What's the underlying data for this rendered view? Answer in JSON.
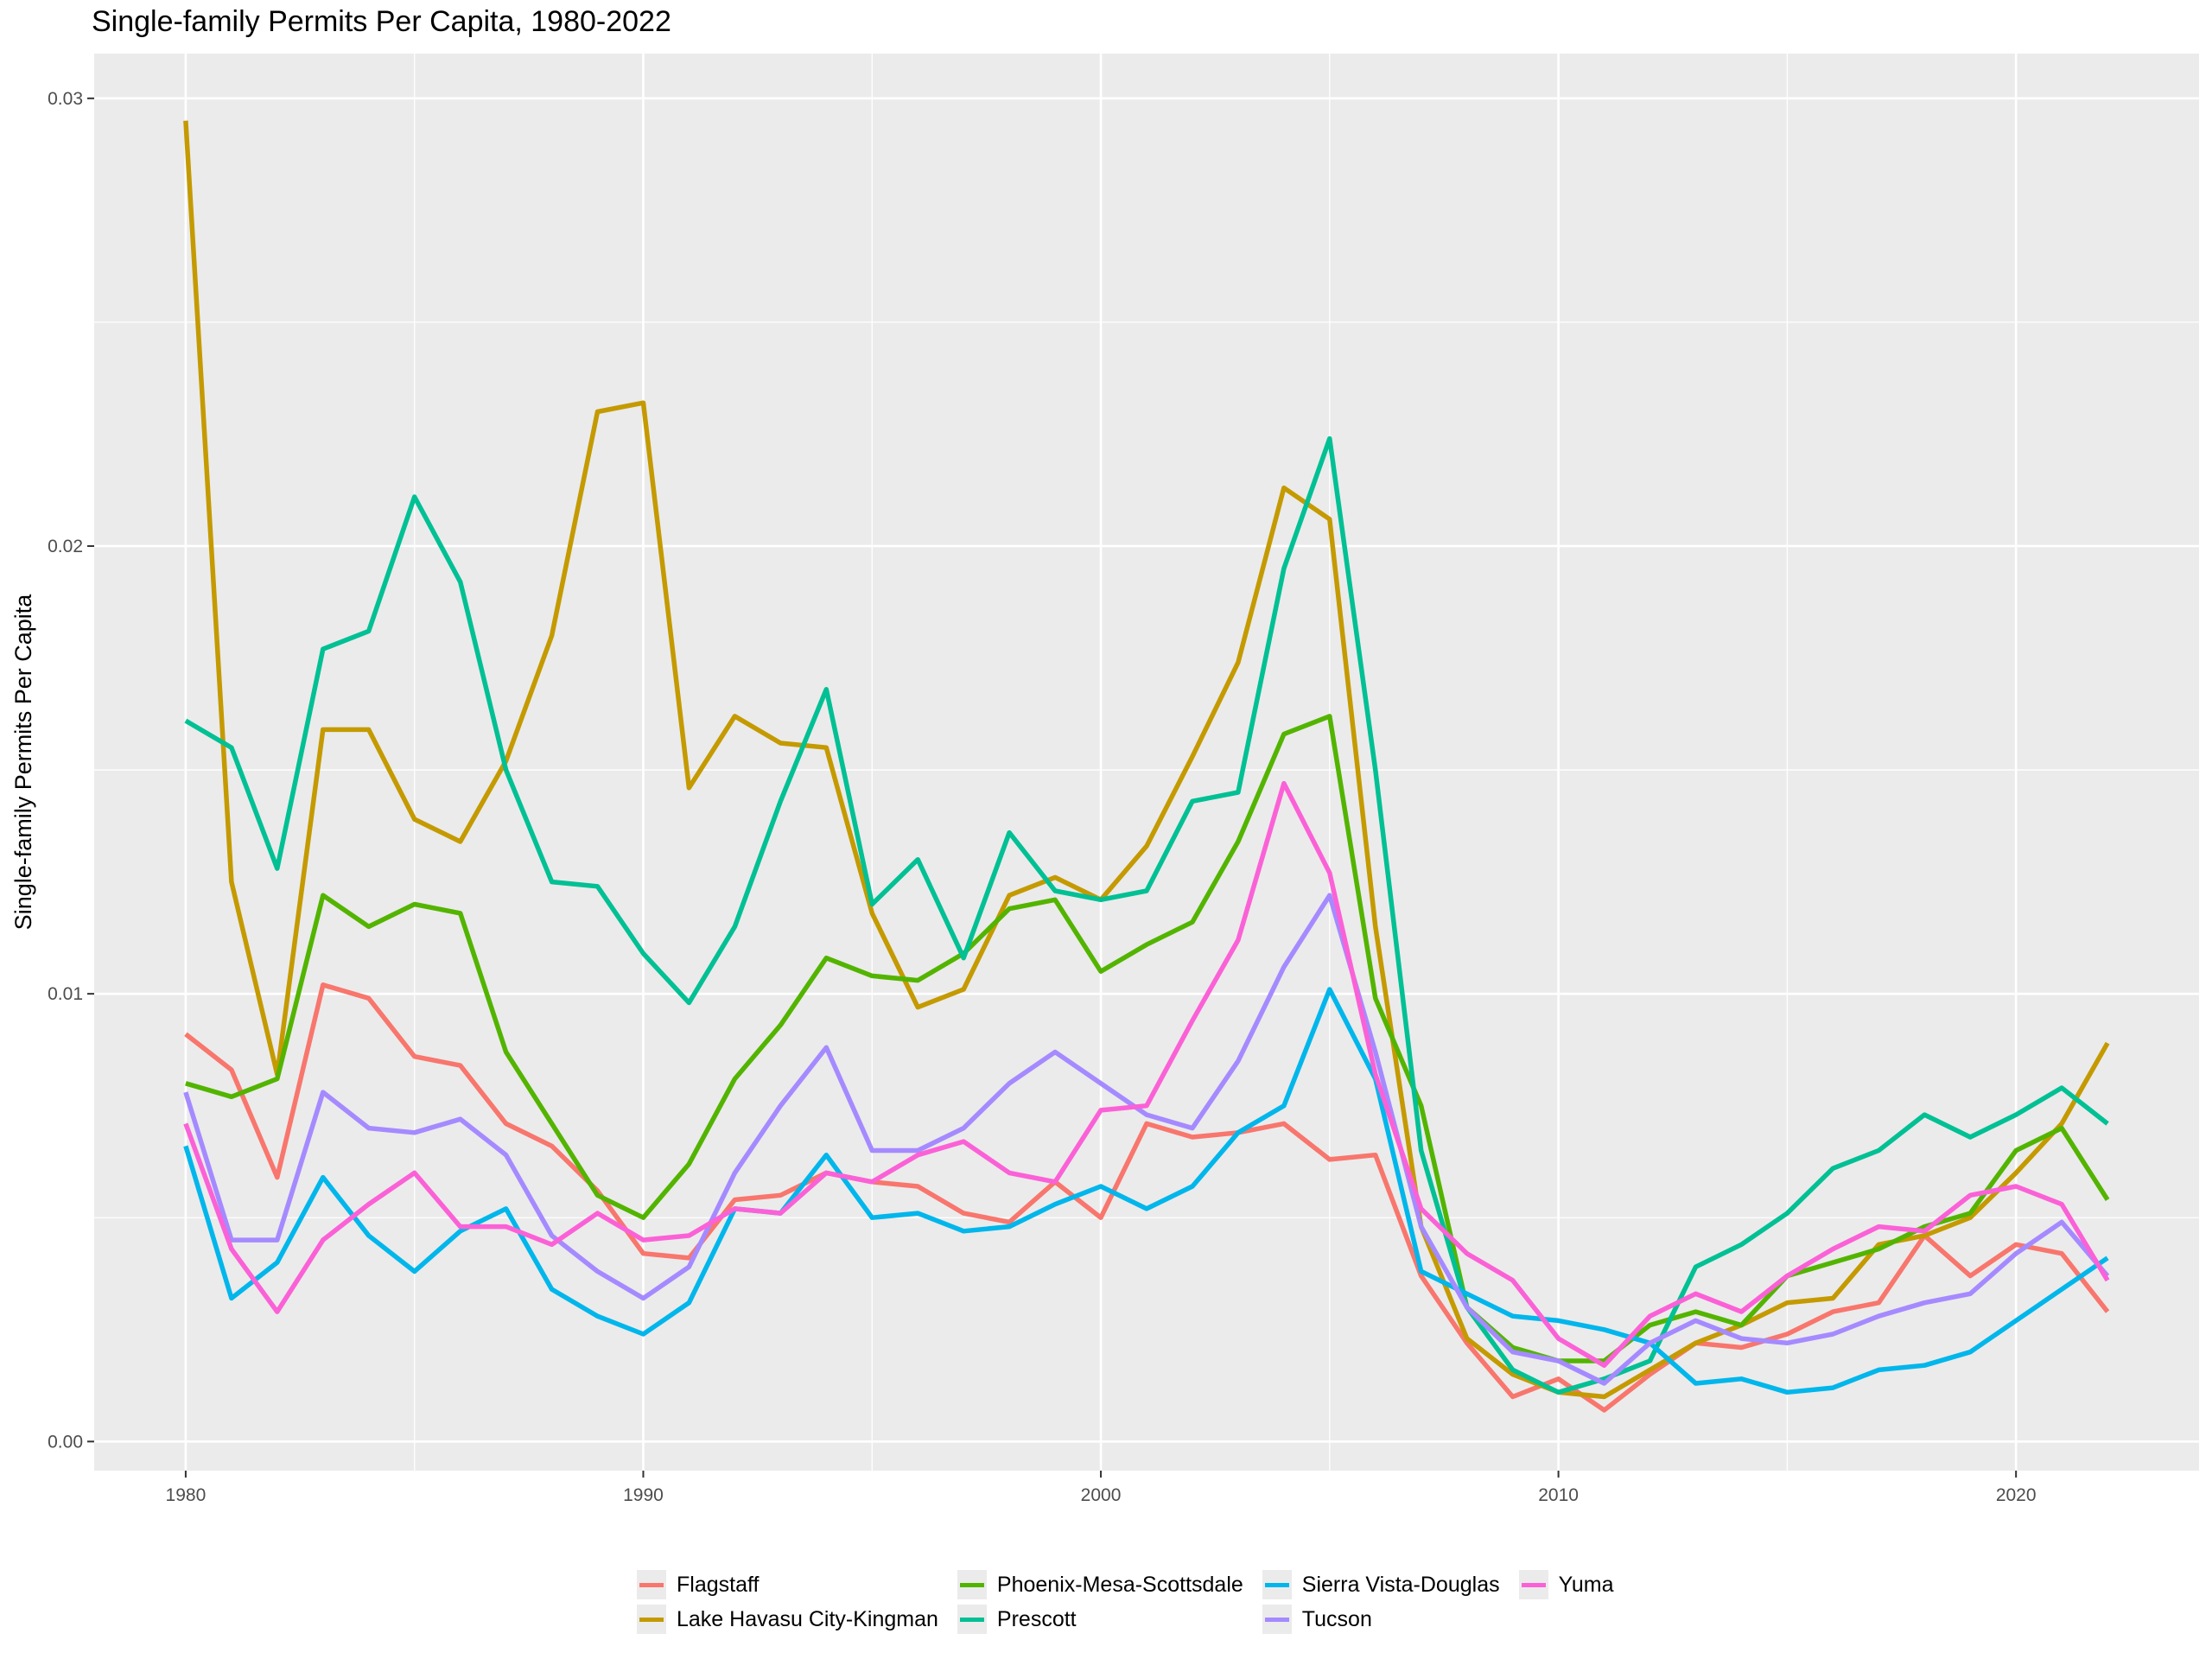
{
  "chart_data": {
    "type": "line",
    "title": "Single-family Permits Per Capita, 1980-2022",
    "xlabel": "",
    "ylabel": "Single-family Permits Per Capita",
    "xlim": [
      1978,
      2024
    ],
    "ylim": [
      -0.00065,
      0.031
    ],
    "x_ticks": [
      1980,
      1990,
      2000,
      2010,
      2020
    ],
    "y_ticks": [
      0.0,
      0.01,
      0.02,
      0.03
    ],
    "y_tick_labels": [
      "0.00",
      "0.01",
      "0.02",
      "0.03"
    ],
    "grid": true,
    "legend_position": "bottom",
    "x": [
      1980,
      1981,
      1982,
      1983,
      1984,
      1985,
      1986,
      1987,
      1988,
      1989,
      1990,
      1991,
      1992,
      1993,
      1994,
      1995,
      1996,
      1997,
      1998,
      1999,
      2000,
      2001,
      2002,
      2003,
      2004,
      2005,
      2006,
      2007,
      2008,
      2009,
      2010,
      2011,
      2012,
      2013,
      2014,
      2015,
      2016,
      2017,
      2018,
      2019,
      2020,
      2021,
      2022
    ],
    "series": [
      {
        "name": "Flagstaff",
        "color": "#F8766D",
        "values": [
          0.0091,
          0.0083,
          0.0059,
          0.0102,
          0.0099,
          0.0086,
          0.0084,
          0.0071,
          0.0066,
          0.0056,
          0.0042,
          0.0041,
          0.0054,
          0.0055,
          0.006,
          0.0058,
          0.0057,
          0.0051,
          0.0049,
          0.0058,
          0.005,
          0.0071,
          0.0068,
          0.0069,
          0.0071,
          0.0063,
          0.0064,
          0.0037,
          0.0022,
          0.001,
          0.0014,
          0.0007,
          0.0015,
          0.0022,
          0.0021,
          0.0024,
          0.0029,
          0.0031,
          0.0046,
          0.0037,
          0.0044,
          0.0042,
          0.0029
        ]
      },
      {
        "name": "Lake Havasu City-Kingman",
        "color": "#C49A00",
        "values": [
          0.0295,
          0.0125,
          0.0082,
          0.0159,
          0.0159,
          0.0139,
          0.0134,
          0.0152,
          0.018,
          0.023,
          0.0232,
          0.0146,
          0.0162,
          0.0156,
          0.0155,
          0.0118,
          0.0097,
          0.0101,
          0.0122,
          0.0126,
          0.0121,
          0.0133,
          0.0153,
          0.0174,
          0.0213,
          0.0206,
          0.0115,
          0.0048,
          0.0023,
          0.0015,
          0.0011,
          0.001,
          0.0016,
          0.0022,
          0.0026,
          0.0031,
          0.0032,
          0.0044,
          0.0046,
          0.005,
          0.006,
          0.0071,
          0.0089
        ]
      },
      {
        "name": "Phoenix-Mesa-Scottsdale",
        "color": "#53B400",
        "values": [
          0.008,
          0.0077,
          0.0081,
          0.0122,
          0.0115,
          0.012,
          0.0118,
          0.0087,
          0.0071,
          0.0055,
          0.005,
          0.0062,
          0.0081,
          0.0093,
          0.0108,
          0.0104,
          0.0103,
          0.0109,
          0.0119,
          0.0121,
          0.0105,
          0.0111,
          0.0116,
          0.0134,
          0.0158,
          0.0162,
          0.0099,
          0.0075,
          0.003,
          0.0021,
          0.0018,
          0.0018,
          0.0026,
          0.0029,
          0.0026,
          0.0037,
          0.004,
          0.0043,
          0.0048,
          0.0051,
          0.0065,
          0.007,
          0.0054
        ]
      },
      {
        "name": "Prescott",
        "color": "#00C094",
        "values": [
          0.0161,
          0.0155,
          0.0128,
          0.0177,
          0.0181,
          0.0211,
          0.0192,
          0.015,
          0.0125,
          0.0124,
          0.0109,
          0.0098,
          0.0115,
          0.0143,
          0.0168,
          0.012,
          0.013,
          0.0108,
          0.0136,
          0.0123,
          0.0121,
          0.0123,
          0.0143,
          0.0145,
          0.0195,
          0.0224,
          0.015,
          0.0065,
          0.003,
          0.0016,
          0.0011,
          0.0014,
          0.0018,
          0.0039,
          0.0044,
          0.0051,
          0.0061,
          0.0065,
          0.0073,
          0.0068,
          0.0073,
          0.0079,
          0.0071
        ]
      },
      {
        "name": "Sierra Vista-Douglas",
        "color": "#00B6EB",
        "values": [
          0.0066,
          0.0032,
          0.004,
          0.0059,
          0.0046,
          0.0038,
          0.0047,
          0.0052,
          0.0034,
          0.0028,
          0.0024,
          0.0031,
          0.0052,
          0.0051,
          0.0064,
          0.005,
          0.0051,
          0.0047,
          0.0048,
          0.0053,
          0.0057,
          0.0052,
          0.0057,
          0.0069,
          0.0075,
          0.0101,
          0.0081,
          0.0038,
          0.0033,
          0.0028,
          0.0027,
          0.0025,
          0.0022,
          0.0013,
          0.0014,
          0.0011,
          0.0012,
          0.0016,
          0.0017,
          0.002,
          0.0027,
          0.0034,
          0.0041
        ]
      },
      {
        "name": "Tucson",
        "color": "#A58AFF",
        "values": [
          0.0078,
          0.0045,
          0.0045,
          0.0078,
          0.007,
          0.0069,
          0.0072,
          0.0064,
          0.0046,
          0.0038,
          0.0032,
          0.0039,
          0.006,
          0.0075,
          0.0088,
          0.0065,
          0.0065,
          0.007,
          0.008,
          0.0087,
          0.008,
          0.0073,
          0.007,
          0.0085,
          0.0106,
          0.0122,
          0.0087,
          0.0048,
          0.003,
          0.002,
          0.0018,
          0.0013,
          0.0022,
          0.0027,
          0.0023,
          0.0022,
          0.0024,
          0.0028,
          0.0031,
          0.0033,
          0.0042,
          0.0049,
          0.0037
        ]
      },
      {
        "name": "Yuma",
        "color": "#FB61D7",
        "values": [
          0.0071,
          0.0043,
          0.0029,
          0.0045,
          0.0053,
          0.006,
          0.0048,
          0.0048,
          0.0044,
          0.0051,
          0.0045,
          0.0046,
          0.0052,
          0.0051,
          0.006,
          0.0058,
          0.0064,
          0.0067,
          0.006,
          0.0058,
          0.0074,
          0.0075,
          0.0094,
          0.0112,
          0.0147,
          0.0127,
          0.0082,
          0.0052,
          0.0042,
          0.0036,
          0.0023,
          0.0017,
          0.0028,
          0.0033,
          0.0029,
          0.0037,
          0.0043,
          0.0048,
          0.0047,
          0.0055,
          0.0057,
          0.0053,
          0.0036
        ]
      }
    ]
  }
}
